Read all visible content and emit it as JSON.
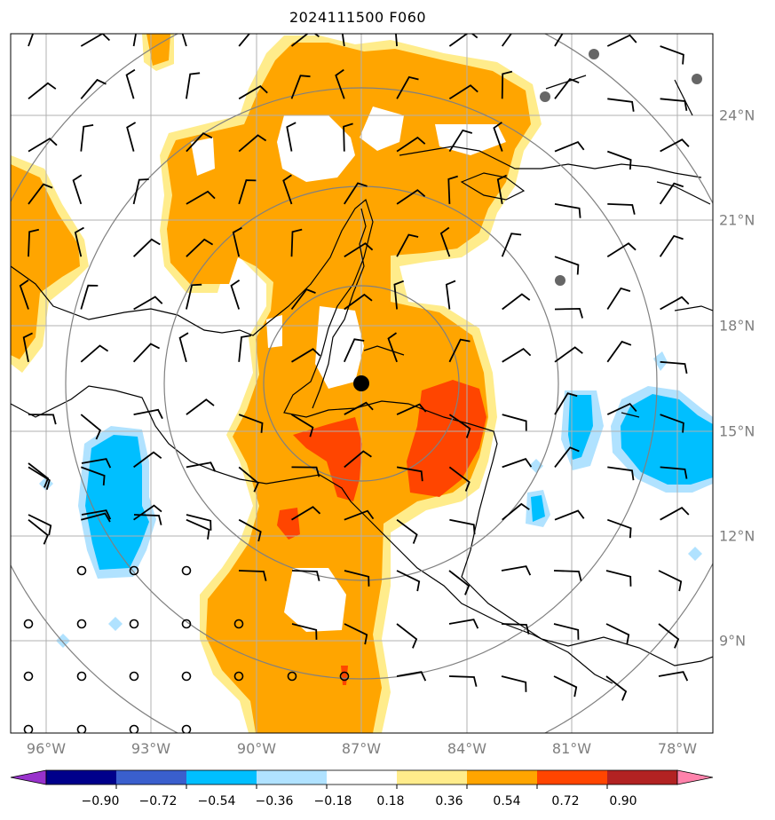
{
  "title": "2024111500 F060",
  "lon_labels": [
    "96°W",
    "93°W",
    "90°W",
    "87°W",
    "84°W",
    "81°W",
    "78°W"
  ],
  "lat_labels": [
    "24°N",
    "21°N",
    "18°N",
    "15°N",
    "12°N",
    "9°N"
  ],
  "colorbar": {
    "ticks": [
      "−0.90",
      "−0.72",
      "−0.54",
      "−0.36",
      "−0.18",
      "0.18",
      "0.36",
      "0.54",
      "0.72",
      "0.90"
    ],
    "colors": [
      "#9932cc",
      "#00008b",
      "#3a5fcd",
      "#00bfff",
      "#b0e2ff",
      "#ffffff",
      "#ffec8b",
      "#ffa500",
      "#ff4500",
      "#b22222",
      "#ff82ab"
    ]
  },
  "center_marker": "storm-center-dot",
  "field_colors": {
    "pos_low": "#ffec8b",
    "pos_mid": "#ffa500",
    "pos_high": "#ff4500",
    "neg_low": "#b0e2ff",
    "neg_mid": "#00bfff"
  }
}
